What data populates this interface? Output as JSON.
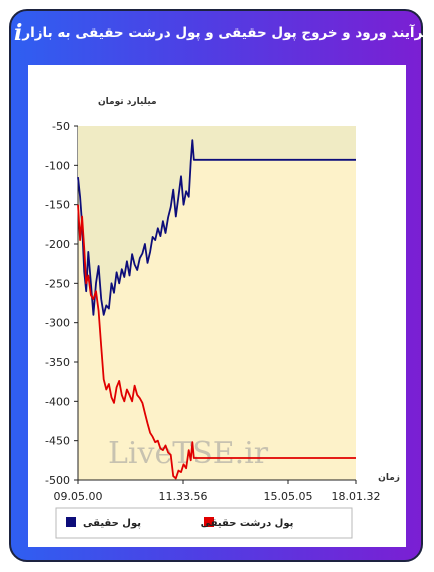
{
  "header": {
    "title": "برآیند ورود و خروج پول حقیقی و پول درشت حقیقی به بازار",
    "info_icon": "i",
    "link_icon": "link-icon"
  },
  "watermark": "LiveTSE.ir",
  "colors": {
    "gradient_start": "#2f5ff1",
    "gradient_end": "#7b1fd3",
    "plot_background": "#fdf2c9",
    "real_money": "#0d0d7a",
    "big_real_money": "#e00000"
  },
  "chart_data": {
    "type": "line",
    "ylabel": "میلیارد تومان",
    "xlabel": "زمان",
    "ylim": [
      -500,
      -50
    ],
    "yticks": [
      -50,
      -100,
      -150,
      -200,
      -250,
      -300,
      -350,
      -400,
      -450,
      -500
    ],
    "xticks": [
      "09.05.00",
      "11.33.56",
      "15.05.05",
      "18.01.32"
    ],
    "x_range": [
      0,
      540
    ],
    "legend_position": "bottom",
    "grid": false,
    "series": [
      {
        "name": "پول حقیقی",
        "color": "#0d0d7a",
        "x": [
          0,
          4,
          8,
          12,
          16,
          20,
          25,
          30,
          35,
          40,
          45,
          50,
          55,
          60,
          65,
          70,
          75,
          80,
          85,
          90,
          95,
          100,
          105,
          110,
          115,
          120,
          125,
          130,
          135,
          140,
          145,
          150,
          155,
          160,
          165,
          170,
          175,
          180,
          185,
          190,
          195,
          200,
          205,
          210,
          215,
          219,
          222,
          225,
          540
        ],
        "values": [
          -115,
          -140,
          -175,
          -235,
          -260,
          -210,
          -250,
          -290,
          -250,
          -228,
          -270,
          -290,
          -278,
          -282,
          -250,
          -262,
          -236,
          -250,
          -232,
          -242,
          -222,
          -240,
          -213,
          -226,
          -233,
          -218,
          -212,
          -200,
          -224,
          -210,
          -191,
          -195,
          -180,
          -190,
          -171,
          -186,
          -166,
          -153,
          -131,
          -165,
          -140,
          -114,
          -150,
          -133,
          -140,
          -95,
          -68,
          -93,
          -93
        ]
      },
      {
        "name": "پول درشت حقیقی",
        "color": "#e00000",
        "x": [
          0,
          4,
          8,
          12,
          16,
          20,
          25,
          30,
          35,
          40,
          45,
          50,
          55,
          60,
          65,
          70,
          75,
          80,
          85,
          90,
          95,
          100,
          105,
          110,
          115,
          120,
          125,
          130,
          135,
          140,
          145,
          150,
          155,
          160,
          165,
          170,
          175,
          180,
          185,
          190,
          195,
          200,
          205,
          210,
          215,
          219,
          222,
          225,
          540
        ],
        "values": [
          -150,
          -195,
          -165,
          -205,
          -250,
          -240,
          -265,
          -270,
          -260,
          -285,
          -330,
          -372,
          -385,
          -378,
          -395,
          -402,
          -382,
          -374,
          -392,
          -400,
          -385,
          -392,
          -400,
          -380,
          -392,
          -396,
          -402,
          -415,
          -428,
          -440,
          -445,
          -452,
          -450,
          -460,
          -462,
          -456,
          -465,
          -468,
          -495,
          -498,
          -488,
          -490,
          -480,
          -485,
          -462,
          -475,
          -452,
          -472,
          -472
        ]
      }
    ]
  }
}
